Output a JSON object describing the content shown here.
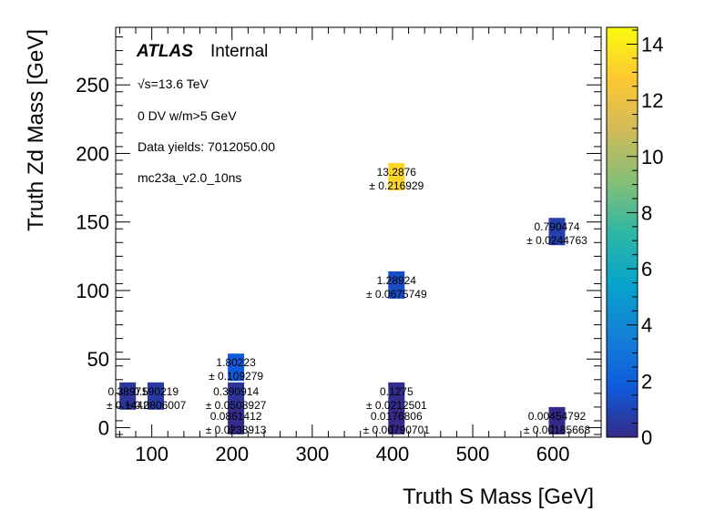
{
  "chart_data": {
    "type": "heatmap",
    "xlabel": "Truth S Mass [GeV]",
    "ylabel": "Truth Zd Mass [GeV]",
    "xlim": [
      55,
      660
    ],
    "ylim": [
      -7,
      292
    ],
    "xticks": [
      100,
      200,
      300,
      400,
      500,
      600
    ],
    "xtick_labels": [
      "100",
      "200",
      "300",
      "400",
      "500",
      "600"
    ],
    "yticks": [
      0,
      50,
      100,
      150,
      200,
      250
    ],
    "ytick_labels": [
      "0",
      "50",
      "100",
      "150",
      "200",
      "250"
    ],
    "zlim": [
      0,
      14.6
    ],
    "zticks": [
      0,
      2,
      4,
      6,
      8,
      10,
      12,
      14
    ],
    "ztick_labels": [
      "0",
      "2",
      "4",
      "6",
      "8",
      "10",
      "12",
      "14"
    ],
    "annotations": {
      "experiment": "ATLAS",
      "status": "Internal",
      "energy": "√s=13.6 TeV",
      "selection": "0 DV w/m>5 GeV",
      "yields": "Data yields: 7012050.00",
      "sample": "mc23a_v2.0_10ns"
    },
    "cells": [
      {
        "x": 70,
        "y": 23,
        "value": 0.38971,
        "label": "0.38971",
        "error": 0.1442,
        "error_label": "± 0.1442"
      },
      {
        "x": 105,
        "y": 23,
        "value": 0.590219,
        "label": "0.590219",
        "error": 0.0806007,
        "error_label": "± 0.0806007"
      },
      {
        "x": 205,
        "y": 44,
        "value": 1.80223,
        "label": "1.80223",
        "error": 0.109279,
        "error_label": "± 0.109279"
      },
      {
        "x": 205,
        "y": 23,
        "value": 0.390914,
        "label": "0.390914",
        "error": 0.0508927,
        "error_label": "± 0.0508927"
      },
      {
        "x": 205,
        "y": 5,
        "value": 0.0861412,
        "label": "0.0861412",
        "error": 0.0238913,
        "error_label": "± 0.0238913"
      },
      {
        "x": 405,
        "y": 183,
        "value": 13.2876,
        "label": "13.2876",
        "error": 0.216929,
        "error_label": "± 0.216929"
      },
      {
        "x": 405,
        "y": 104,
        "value": 1.28924,
        "label": "1.28924",
        "error": 0.0675749,
        "error_label": "± 0.0675749"
      },
      {
        "x": 405,
        "y": 23,
        "value": 0.1275,
        "label": "0.1275",
        "error": 0.0212501,
        "error_label": "± 0.0212501"
      },
      {
        "x": 405,
        "y": 5,
        "value": 0.0176806,
        "label": "0.0176806",
        "error": 0.00790701,
        "error_label": "± 0.00790701"
      },
      {
        "x": 605,
        "y": 143,
        "value": 0.790474,
        "label": "0.790474",
        "error": 0.0244763,
        "error_label": "± 0.0244763"
      },
      {
        "x": 605,
        "y": 5,
        "value": 0.00454792,
        "label": "0.00454792",
        "error": 0.00185668,
        "error_label": "± 0.00185668"
      }
    ],
    "colormap": [
      "#352a87",
      "#0f5cdd",
      "#1481d6",
      "#06a4ca",
      "#2eb7a4",
      "#87bf77",
      "#d1bb59",
      "#fec832",
      "#f9fb0e"
    ]
  }
}
